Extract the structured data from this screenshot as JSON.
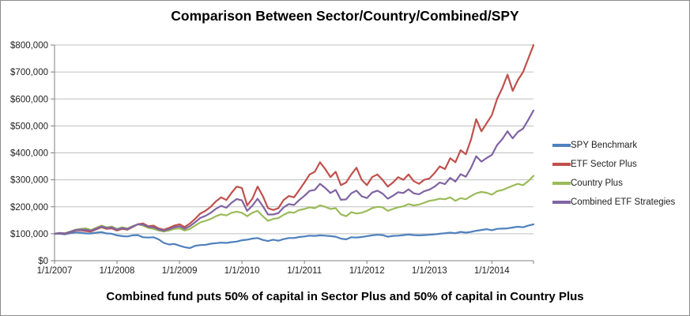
{
  "chart_data": {
    "type": "line",
    "title": "Comparison Between Sector/Country/Combined/SPY",
    "caption": "Combined fund puts 50% of capital in Sector Plus and 50% of capital in Country Plus",
    "xlabel": "",
    "ylabel": "",
    "x_frequency": "monthly",
    "x_start": "1/1/2007",
    "x_end": "9/1/2014",
    "x_tick_labels": [
      "1/1/2007",
      "1/1/2008",
      "1/1/2009",
      "1/1/2010",
      "1/1/2011",
      "1/1/2012",
      "1/1/2013",
      "1/1/2014"
    ],
    "ylim": [
      0,
      800000
    ],
    "y_tick_step": 100000,
    "y_tick_labels": [
      "$0",
      "$100,000",
      "$200,000",
      "$300,000",
      "$400,000",
      "$500,000",
      "$600,000",
      "$700,000",
      "$800,000"
    ],
    "grid": true,
    "legend_position": "right",
    "series": [
      {
        "name": "SPY Benchmark",
        "color": "#4F81BD",
        "values": [
          100000,
          100000,
          98000,
          102000,
          105000,
          104000,
          101000,
          101000,
          104000,
          106000,
          101000,
          100000,
          94000,
          91000,
          90000,
          94000,
          95000,
          87000,
          86000,
          87000,
          79000,
          66000,
          60000,
          62000,
          56000,
          50000,
          47000,
          55000,
          58000,
          59000,
          63000,
          65000,
          67000,
          66000,
          69000,
          71000,
          76000,
          78000,
          82000,
          84000,
          77000,
          73000,
          78000,
          74000,
          80000,
          84000,
          84000,
          88000,
          90000,
          93000,
          92000,
          94000,
          93000,
          91000,
          89000,
          82000,
          79000,
          87000,
          86000,
          88000,
          91000,
          94000,
          96000,
          95000,
          89000,
          92000,
          93000,
          95000,
          97000,
          95000,
          94000,
          95000,
          96000,
          98000,
          100000,
          102000,
          104000,
          102000,
          107000,
          104000,
          107000,
          111000,
          114000,
          117000,
          113000,
          118000,
          119000,
          120000,
          123000,
          126000,
          124000,
          130000,
          135000
        ]
      },
      {
        "name": "ETF Sector Plus",
        "color": "#C0504D",
        "values": [
          100000,
          102000,
          100000,
          106000,
          112000,
          113000,
          110000,
          108000,
          116000,
          124000,
          118000,
          120000,
          112000,
          118000,
          115000,
          125000,
          135000,
          138000,
          128000,
          130000,
          120000,
          115000,
          122000,
          130000,
          135000,
          125000,
          138000,
          155000,
          175000,
          185000,
          200000,
          220000,
          235000,
          225000,
          252000,
          275000,
          270000,
          205000,
          230000,
          275000,
          240000,
          195000,
          188000,
          195000,
          225000,
          240000,
          235000,
          262000,
          290000,
          320000,
          330000,
          365000,
          340000,
          310000,
          330000,
          280000,
          290000,
          320000,
          345000,
          300000,
          280000,
          310000,
          320000,
          300000,
          275000,
          290000,
          310000,
          300000,
          320000,
          295000,
          285000,
          300000,
          305000,
          325000,
          350000,
          340000,
          380000,
          365000,
          410000,
          395000,
          450000,
          525000,
          480000,
          510000,
          540000,
          600000,
          640000,
          690000,
          630000,
          670000,
          700000,
          750000,
          800000
        ]
      },
      {
        "name": "Country Plus",
        "color": "#9BBB59",
        "values": [
          100000,
          103000,
          102000,
          108000,
          115000,
          118000,
          120000,
          114000,
          122000,
          130000,
          124000,
          127000,
          118000,
          124000,
          120000,
          128000,
          135000,
          130000,
          122000,
          118000,
          112000,
          108000,
          112000,
          118000,
          120000,
          112000,
          118000,
          130000,
          142000,
          148000,
          155000,
          165000,
          172000,
          168000,
          178000,
          182000,
          178000,
          165000,
          178000,
          185000,
          165000,
          148000,
          155000,
          158000,
          170000,
          180000,
          178000,
          188000,
          192000,
          198000,
          195000,
          205000,
          200000,
          192000,
          195000,
          172000,
          165000,
          180000,
          175000,
          178000,
          185000,
          195000,
          200000,
          198000,
          185000,
          192000,
          198000,
          202000,
          210000,
          205000,
          208000,
          215000,
          222000,
          225000,
          230000,
          228000,
          235000,
          222000,
          232000,
          228000,
          240000,
          250000,
          255000,
          252000,
          245000,
          258000,
          262000,
          270000,
          278000,
          285000,
          280000,
          295000,
          315000
        ]
      },
      {
        "name": "Combined ETF Strategies",
        "color": "#8064A2",
        "values": [
          100000,
          102500,
          101000,
          107000,
          113500,
          115500,
          115000,
          111000,
          119000,
          127000,
          121000,
          123500,
          115000,
          121000,
          117500,
          126500,
          135000,
          134000,
          125000,
          124000,
          116000,
          111500,
          117000,
          124000,
          127500,
          118500,
          128000,
          142500,
          158500,
          166500,
          177500,
          192500,
          203500,
          196500,
          215000,
          228500,
          224000,
          185000,
          204000,
          230000,
          202500,
          171500,
          171500,
          176500,
          197500,
          210000,
          206500,
          225000,
          241000,
          259000,
          262500,
          285000,
          270000,
          251000,
          262500,
          226000,
          227500,
          250000,
          260000,
          239000,
          232500,
          252500,
          260000,
          249000,
          230000,
          241000,
          254000,
          251000,
          265000,
          250000,
          246500,
          257500,
          263500,
          275000,
          290000,
          284000,
          307500,
          293500,
          321000,
          311500,
          345000,
          387500,
          367500,
          381000,
          392500,
          429000,
          451000,
          480000,
          454000,
          477500,
          490000,
          522500,
          557500
        ]
      }
    ]
  }
}
